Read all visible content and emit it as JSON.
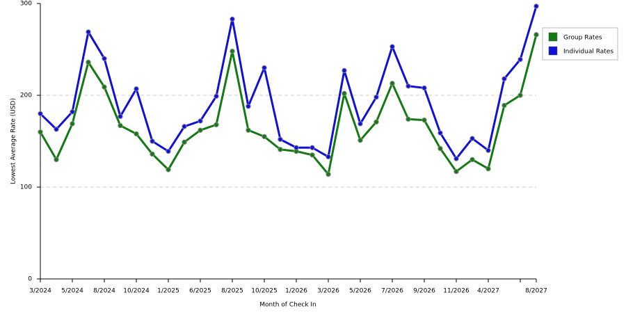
{
  "chart_data": {
    "type": "line",
    "x_label": "Month of Check In",
    "y_label": "Lowest Average Rate (USD)",
    "categories": [
      "3/2024",
      null,
      "5/2024",
      null,
      "8/2024",
      null,
      "10/2024",
      null,
      "1/2025",
      null,
      "6/2025",
      null,
      "8/2025",
      null,
      "10/2025",
      null,
      "1/2026",
      null,
      "3/2026",
      null,
      "5/2026",
      null,
      "7/2026",
      null,
      "9/2026",
      null,
      "11/2026",
      null,
      "4/2027",
      null,
      null,
      "8/2027"
    ],
    "series": [
      {
        "name": "Group Rates",
        "color": "#137a13",
        "values": [
          160,
          130,
          169,
          236,
          209,
          167,
          158,
          136,
          119,
          149,
          162,
          168,
          248,
          162,
          155,
          141,
          139,
          135,
          114,
          202,
          151,
          171,
          213,
          174,
          173,
          142,
          117,
          130,
          120,
          189,
          200,
          266
        ]
      },
      {
        "name": "Individual Rates",
        "color": "#1010d8",
        "values": [
          180,
          163,
          182,
          269,
          240,
          177,
          207,
          150,
          139,
          166,
          172,
          199,
          283,
          188,
          230,
          152,
          143,
          143,
          133,
          227,
          169,
          198,
          253,
          210,
          208,
          159,
          131,
          153,
          140,
          218,
          239,
          297
        ]
      }
    ],
    "ylim": [
      0,
      300
    ],
    "yticks": [
      0,
      100,
      200,
      300
    ],
    "grid": true,
    "legend": "right"
  }
}
